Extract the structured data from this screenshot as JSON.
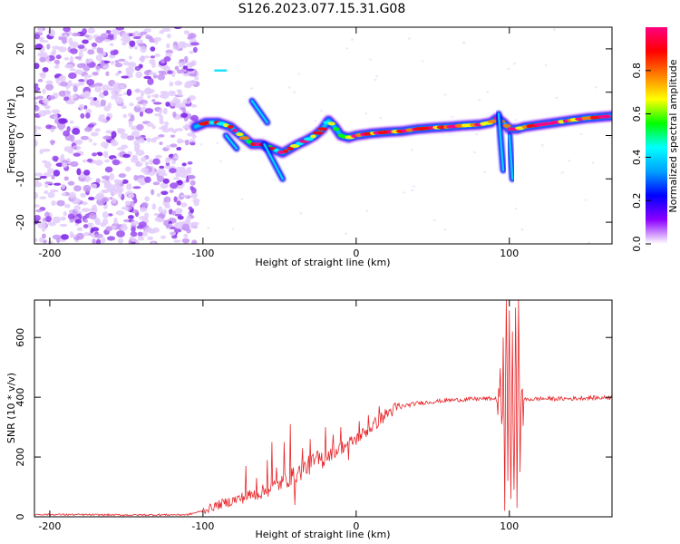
{
  "title": "S126.2023.077.15.31.G08",
  "colors": {
    "snr_line": "#e8262a",
    "colormap": [
      "#ffffff",
      "#8c00ff",
      "#0000ff",
      "#00a0ff",
      "#00ffff",
      "#00ff00",
      "#ffff00",
      "#ff8000",
      "#ff0000",
      "#ff0080"
    ]
  },
  "chart_data": [
    {
      "type": "heatmap",
      "xlabel": "Height of straight line (km)",
      "ylabel": "Frequency (Hz)",
      "xlim": [
        -210,
        167
      ],
      "ylim": [
        -25,
        25
      ],
      "x_ticks": [
        -200,
        -100,
        0,
        100
      ],
      "y_ticks": [
        -20,
        -10,
        0,
        10,
        20
      ],
      "colorbar": {
        "label": "Normalized spectral amplitude",
        "range": [
          0,
          1
        ],
        "ticks": [
          "0.0",
          "0.2",
          "0.4",
          "0.6",
          "0.8"
        ]
      },
      "noise_region_x": [
        -210,
        -104
      ],
      "ridge": {
        "x": [
          -105,
          -98,
          -90,
          -82,
          -75,
          -68,
          -62,
          -55,
          -48,
          -43,
          -38,
          -32,
          -27,
          -22,
          -18,
          -14,
          -10,
          -5,
          0,
          10,
          20,
          30,
          40,
          50,
          60,
          70,
          80,
          88,
          92,
          96,
          100,
          105,
          110,
          120,
          130,
          140,
          150,
          160,
          167
        ],
        "y": [
          2,
          3,
          3,
          2,
          0,
          -2,
          -2,
          -3,
          -4,
          -3,
          -2,
          -1,
          0,
          1.5,
          3.5,
          2,
          0,
          -0.5,
          0,
          0.5,
          0.8,
          1,
          1.5,
          1.8,
          2,
          2.3,
          2.5,
          3,
          4,
          3,
          1.5,
          1.5,
          2,
          2.5,
          3,
          3.5,
          4,
          4.3,
          4.5
        ]
      },
      "features": [
        {
          "x": [
            -92,
            -85
          ],
          "y": [
            15,
            15
          ]
        },
        {
          "x": [
            -68,
            -58
          ],
          "y": [
            8,
            3
          ]
        },
        {
          "x": [
            -60,
            -48
          ],
          "y": [
            -2,
            -10
          ]
        },
        {
          "x": [
            -85,
            -78
          ],
          "y": [
            0,
            -3
          ]
        },
        {
          "x": [
            93,
            96
          ],
          "y": [
            5,
            -8
          ]
        },
        {
          "x": [
            100,
            102
          ],
          "y": [
            0,
            -10
          ]
        }
      ]
    },
    {
      "type": "line",
      "xlabel": "Height of straight line (km)",
      "ylabel": "SNR (10 * v/v)",
      "xlim": [
        -210,
        167
      ],
      "ylim": [
        0,
        725
      ],
      "x_ticks": [
        -200,
        -100,
        0,
        100
      ],
      "y_ticks": [
        0,
        200,
        400,
        600
      ],
      "series": [
        {
          "baseline": {
            "x": [
              -210,
              -150,
              -110,
              -100,
              -90,
              -80,
              -70,
              -60,
              -50,
              -40,
              -30,
              -20,
              -10,
              0,
              10,
              20,
              25,
              30,
              40,
              50,
              60,
              70,
              80,
              90,
              95,
              110,
              120,
              130,
              140,
              150,
              160,
              167
            ],
            "y": [
              8,
              6,
              7,
              20,
              40,
              55,
              70,
              85,
              110,
              140,
              175,
              200,
              230,
              260,
              300,
              345,
              360,
              370,
              380,
              385,
              390,
              392,
              395,
              395,
              390,
              392,
              395,
              395,
              395,
              398,
              398,
              400
            ]
          },
          "spikes": [
            {
              "x": -72,
              "y": 170
            },
            {
              "x": -65,
              "y": 130
            },
            {
              "x": -58,
              "y": 190
            },
            {
              "x": -55,
              "y": 250
            },
            {
              "x": -52,
              "y": 165
            },
            {
              "x": -47,
              "y": 250
            },
            {
              "x": -43,
              "y": 310
            },
            {
              "x": -40,
              "y": 40
            },
            {
              "x": -35,
              "y": 230
            },
            {
              "x": -30,
              "y": 260
            },
            {
              "x": -25,
              "y": 220
            },
            {
              "x": -20,
              "y": 300
            },
            {
              "x": -15,
              "y": 275
            },
            {
              "x": -10,
              "y": 300
            },
            {
              "x": -5,
              "y": 190
            },
            {
              "x": 2,
              "y": 320
            },
            {
              "x": 8,
              "y": 340
            },
            {
              "x": 15,
              "y": 370
            }
          ],
          "burst": [
            {
              "x": 93,
              "y": 430
            },
            {
              "x": 95,
              "y": 310
            },
            {
              "x": 96,
              "y": 600
            },
            {
              "x": 97,
              "y": 20
            },
            {
              "x": 98,
              "y": 725
            },
            {
              "x": 99,
              "y": 120
            },
            {
              "x": 100,
              "y": 690
            },
            {
              "x": 101,
              "y": 60
            },
            {
              "x": 102,
              "y": 620
            },
            {
              "x": 103,
              "y": 90
            },
            {
              "x": 104,
              "y": 700
            },
            {
              "x": 105,
              "y": 30
            },
            {
              "x": 106,
              "y": 725
            },
            {
              "x": 107,
              "y": 150
            },
            {
              "x": 108,
              "y": 420
            }
          ]
        }
      ]
    }
  ]
}
